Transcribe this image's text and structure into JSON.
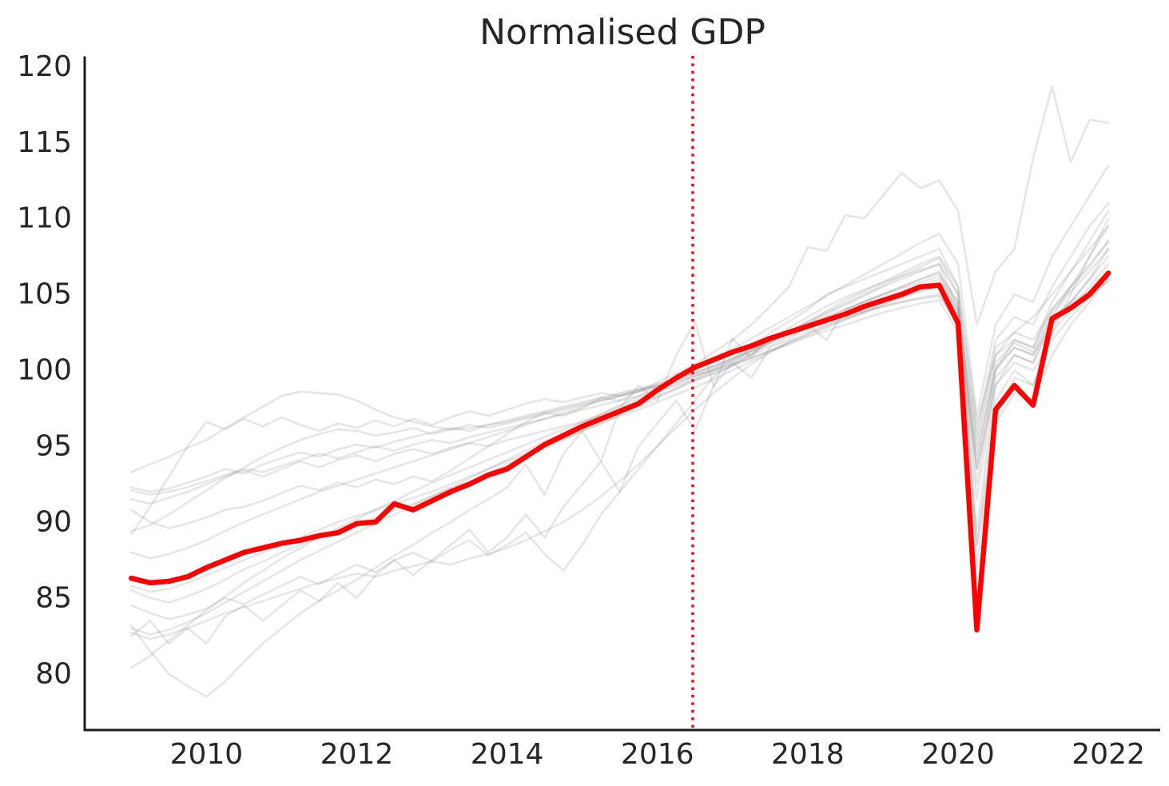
{
  "title": "Normalised GDP",
  "colors": {
    "highlight_line": "#ff0000",
    "reference_line": "#ff0000",
    "background_line": "#8c8c8c",
    "spine": "#1c1c1c",
    "text": "#262626",
    "background": "#ffffff"
  },
  "chart_data": {
    "type": "line",
    "title": "Normalised GDP",
    "xlabel": "",
    "ylabel": "",
    "grid": false,
    "legend": "none",
    "xlim": [
      2008.38,
      2022.69
    ],
    "ylim": [
      76.3,
      120.6
    ],
    "x_ticks": [
      2010,
      2012,
      2014,
      2016,
      2018,
      2020,
      2022
    ],
    "x_tick_labels": [
      "2010",
      "2012",
      "2014",
      "2016",
      "2018",
      "2020",
      "2022"
    ],
    "y_ticks": [
      80,
      85,
      90,
      95,
      100,
      105,
      110,
      115,
      120
    ],
    "y_tick_labels": [
      "80",
      "85",
      "90",
      "95",
      "100",
      "105",
      "110",
      "115",
      "120"
    ],
    "reference_line": {
      "orientation": "vertical",
      "style": "dotted",
      "x": 2016.47,
      "color": "#ff0000"
    },
    "x_start_year": 2009.0,
    "x_step_years": 0.25,
    "series": [
      {
        "name": "background-series-1",
        "role": "background",
        "values": [
          93.3,
          93.8,
          94.3,
          94.9,
          95.4,
          96.2,
          96.9,
          97.6,
          98.3,
          98.6,
          98.5,
          98.4,
          98.0,
          97.4,
          96.9,
          96.6,
          96.3,
          96.1,
          96.2,
          96.4,
          96.6,
          96.9,
          97.2,
          97.5,
          97.8,
          98.1,
          98.4,
          98.7,
          99.0,
          99.4,
          99.8,
          100.3,
          100.8,
          101.3,
          101.9,
          102.4,
          102.9,
          103.3,
          103.6,
          103.9,
          104.2,
          104.5,
          104.7,
          104.9,
          103.0,
          94.5,
          100.2,
          101.5,
          101.0,
          103.5,
          104.5,
          105.2,
          105.8
        ]
      },
      {
        "name": "background-series-2",
        "role": "background",
        "values": [
          90.8,
          90.0,
          89.6,
          89.9,
          90.3,
          90.8,
          91.0,
          91.4,
          91.9,
          92.4,
          92.1,
          92.6,
          92.3,
          92.8,
          92.5,
          93.0,
          92.7,
          93.4,
          94.2,
          95.0,
          95.8,
          96.6,
          97.2,
          97.0,
          97.5,
          98.2,
          98.0,
          98.6,
          99.2,
          99.8,
          100.4,
          101.2,
          102.0,
          103.0,
          104.2,
          105.5,
          108.1,
          107.9,
          110.2,
          110.0,
          111.5,
          113.0,
          112.0,
          112.5,
          110.5,
          103.0,
          106.5,
          108.0,
          114.0,
          118.7,
          113.7,
          116.5,
          116.3
        ]
      },
      {
        "name": "background-series-3",
        "role": "background",
        "values": [
          92.3,
          92.0,
          92.2,
          92.6,
          93.0,
          93.5,
          93.2,
          93.8,
          94.2,
          94.6,
          94.3,
          94.8,
          95.1,
          94.9,
          95.3,
          95.6,
          95.9,
          96.2,
          96.0,
          96.4,
          96.7,
          97.0,
          97.3,
          97.6,
          97.9,
          98.2,
          98.5,
          98.8,
          99.1,
          99.5,
          99.9,
          100.3,
          100.8,
          101.4,
          102.0,
          102.6,
          103.2,
          103.8,
          104.4,
          105.0,
          105.6,
          106.2,
          106.8,
          107.4,
          105.0,
          92.5,
          100.0,
          102.0,
          101.5,
          104.5,
          106.5,
          108.5,
          110.5
        ]
      },
      {
        "name": "background-series-4",
        "role": "background",
        "values": [
          92.1,
          91.8,
          92.0,
          92.3,
          92.7,
          93.1,
          93.5,
          93.3,
          93.7,
          94.1,
          94.5,
          94.2,
          94.6,
          95.0,
          94.7,
          95.1,
          95.4,
          95.2,
          95.6,
          95.9,
          96.2,
          96.5,
          96.8,
          97.1,
          97.4,
          97.7,
          98.0,
          98.3,
          98.6,
          99.0,
          99.4,
          99.8,
          100.3,
          100.8,
          101.3,
          101.8,
          102.3,
          102.8,
          103.3,
          103.8,
          104.3,
          104.8,
          105.3,
          105.8,
          104.0,
          95.5,
          101.5,
          102.5,
          102.0,
          104.0,
          105.5,
          107.0,
          108.5
        ]
      },
      {
        "name": "background-series-5",
        "role": "background",
        "values": [
          91.5,
          91.2,
          91.6,
          92.0,
          92.5,
          93.0,
          93.4,
          93.0,
          93.5,
          94.0,
          93.6,
          94.1,
          94.4,
          94.0,
          94.5,
          94.8,
          94.5,
          94.9,
          95.2,
          95.0,
          95.4,
          95.7,
          96.0,
          96.3,
          96.6,
          97.0,
          97.4,
          97.8,
          98.3,
          98.8,
          99.3,
          99.8,
          100.4,
          101.0,
          101.6,
          102.2,
          102.8,
          103.3,
          103.8,
          104.3,
          104.8,
          105.2,
          105.6,
          106.0,
          104.2,
          94.0,
          100.5,
          101.8,
          101.2,
          103.8,
          105.2,
          106.5,
          108.0
        ]
      },
      {
        "name": "background-series-6",
        "role": "background",
        "values": [
          89.4,
          89.8,
          90.5,
          91.3,
          92.1,
          92.9,
          93.6,
          94.3,
          94.9,
          95.4,
          95.8,
          96.1,
          96.0,
          95.7,
          95.9,
          96.2,
          95.8,
          96.1,
          96.4,
          96.2,
          96.5,
          96.8,
          97.1,
          97.4,
          97.7,
          98.0,
          98.3,
          98.6,
          98.9,
          99.2,
          99.6,
          100.0,
          100.5,
          101.1,
          101.8,
          102.5,
          103.2,
          103.9,
          104.6,
          105.2,
          105.8,
          106.4,
          107.0,
          107.5,
          105.5,
          96.0,
          102.0,
          103.5,
          103.0,
          105.5,
          107.5,
          109.5,
          111.0
        ]
      },
      {
        "name": "background-series-7",
        "role": "background",
        "values": [
          88.0,
          87.6,
          87.9,
          88.3,
          88.8,
          89.4,
          90.0,
          90.5,
          91.0,
          91.5,
          92.0,
          92.4,
          92.8,
          93.2,
          93.6,
          94.0,
          94.4,
          94.8,
          95.2,
          95.6,
          96.0,
          96.4,
          96.8,
          97.2,
          97.6,
          98.0,
          98.3,
          98.6,
          99.0,
          99.4,
          99.8,
          100.2,
          100.7,
          101.3,
          101.9,
          102.5,
          103.0,
          103.5,
          104.0,
          104.5,
          105.0,
          105.5,
          106.0,
          106.4,
          104.5,
          89.5,
          99.0,
          101.0,
          100.5,
          103.5,
          105.5,
          107.5,
          109.5
        ]
      },
      {
        "name": "background-series-8",
        "role": "background",
        "values": [
          85.8,
          85.4,
          85.6,
          86.0,
          86.5,
          87.0,
          87.5,
          88.0,
          88.5,
          89.0,
          89.5,
          90.0,
          90.4,
          90.8,
          91.2,
          91.6,
          92.0,
          92.5,
          93.0,
          93.5,
          94.0,
          94.5,
          95.0,
          95.5,
          96.0,
          96.5,
          97.0,
          97.4,
          97.9,
          98.4,
          98.9,
          99.4,
          100.0,
          100.6,
          101.2,
          101.8,
          102.4,
          102.9,
          103.4,
          103.9,
          104.4,
          104.8,
          105.2,
          105.6,
          103.8,
          93.5,
          100.0,
          101.5,
          101.0,
          103.0,
          104.5,
          106.0,
          107.5
        ]
      },
      {
        "name": "background-series-9",
        "role": "background",
        "values": [
          83.2,
          81.5,
          80.0,
          79.2,
          78.5,
          79.5,
          80.8,
          82.0,
          83.0,
          84.0,
          84.8,
          85.5,
          86.2,
          87.0,
          87.8,
          88.5,
          89.3,
          90.0,
          90.8,
          91.5,
          92.3,
          93.8,
          91.8,
          94.5,
          96.0,
          94.0,
          97.5,
          99.0,
          98.0,
          101.0,
          103.2,
          98.9,
          102.1,
          100.8,
          102.5,
          103.2,
          104.0,
          105.0,
          105.5,
          106.0,
          106.5,
          107.0,
          107.5,
          108.0,
          105.5,
          96.5,
          101.0,
          102.5,
          103.5,
          105.0,
          106.5,
          108.0,
          109.5
        ]
      },
      {
        "name": "background-series-10",
        "role": "background",
        "values": [
          83.0,
          82.6,
          82.9,
          83.4,
          84.0,
          84.7,
          85.4,
          86.1,
          86.8,
          87.5,
          88.1,
          88.7,
          89.3,
          89.9,
          90.5,
          91.1,
          91.7,
          92.3,
          92.9,
          93.5,
          94.1,
          94.7,
          95.3,
          95.9,
          96.5,
          97.1,
          97.7,
          98.3,
          98.9,
          99.5,
          100.1,
          100.7,
          101.4,
          102.1,
          102.8,
          103.5,
          104.2,
          104.9,
          105.6,
          106.3,
          107.0,
          107.7,
          108.4,
          109.0,
          107.0,
          97.0,
          103.0,
          105.0,
          104.5,
          107.5,
          109.5,
          111.5,
          113.5
        ]
      },
      {
        "name": "background-series-11",
        "role": "background",
        "values": [
          82.7,
          82.3,
          82.6,
          83.0,
          83.5,
          84.0,
          84.4,
          84.8,
          85.2,
          85.6,
          86.0,
          86.3,
          86.6,
          86.4,
          86.8,
          87.1,
          87.4,
          87.2,
          87.6,
          87.9,
          88.3,
          88.8,
          89.4,
          90.0,
          90.8,
          91.7,
          92.7,
          93.8,
          95.0,
          96.2,
          97.4,
          98.5,
          99.5,
          100.4,
          101.2,
          101.9,
          102.5,
          103.0,
          103.4,
          103.8,
          104.2,
          104.5,
          104.8,
          105.0,
          103.0,
          88.5,
          96.5,
          98.5,
          98.0,
          101.0,
          103.0,
          104.5,
          106.0
        ]
      },
      {
        "name": "background-series-12",
        "role": "background",
        "values": [
          80.4,
          81.2,
          82.2,
          83.2,
          84.2,
          85.1,
          86.0,
          86.8,
          87.6,
          88.3,
          89.0,
          89.6,
          90.2,
          90.8,
          91.4,
          92.0,
          92.6,
          93.1,
          93.6,
          94.1,
          94.6,
          95.1,
          95.6,
          96.1,
          96.6,
          97.1,
          97.6,
          98.1,
          98.6,
          99.1,
          99.6,
          100.1,
          100.7,
          101.3,
          101.9,
          102.5,
          103.1,
          103.7,
          104.3,
          104.9,
          105.5,
          106.0,
          106.5,
          107.0,
          105.0,
          87.0,
          97.0,
          99.5,
          99.0,
          102.5,
          105.0,
          107.5,
          110.0
        ]
      },
      {
        "name": "background-series-13",
        "role": "background",
        "values": [
          84.5,
          84.0,
          83.6,
          83.9,
          84.3,
          85.0,
          84.6,
          85.2,
          85.8,
          86.4,
          85.9,
          86.6,
          87.2,
          86.7,
          87.5,
          88.0,
          87.4,
          88.2,
          88.8,
          87.8,
          88.5,
          89.3,
          87.9,
          86.8,
          88.5,
          90.5,
          92.0,
          93.5,
          95.0,
          96.5,
          98.0,
          99.6,
          100.3,
          101.0,
          102.0,
          102.8,
          103.5,
          104.2,
          104.8,
          105.3,
          105.8,
          106.2,
          106.6,
          107.0,
          104.0,
          88.5,
          98.0,
          100.0,
          99.0,
          102.5,
          104.0,
          105.5,
          107.0
        ]
      },
      {
        "name": "background-series-14",
        "role": "background",
        "values": [
          82.5,
          83.5,
          82.0,
          83.0,
          82.0,
          83.8,
          84.5,
          83.5,
          84.5,
          85.5,
          84.8,
          86.0,
          85.0,
          86.5,
          87.5,
          86.5,
          87.5,
          88.5,
          89.5,
          88.0,
          89.0,
          90.5,
          89.0,
          91.0,
          92.5,
          94.0,
          92.0,
          95.0,
          96.5,
          98.0,
          96.0,
          99.0,
          100.5,
          99.5,
          101.5,
          102.0,
          103.0,
          102.0,
          104.0,
          104.5,
          105.0,
          105.5,
          106.0,
          106.5,
          103.5,
          91.5,
          99.5,
          101.0,
          100.5,
          103.0,
          104.5,
          106.0,
          108.0
        ]
      },
      {
        "name": "background-series-15",
        "role": "background",
        "values": [
          85.5,
          85.0,
          84.7,
          85.1,
          85.6,
          86.2,
          86.9,
          87.4,
          88.0,
          88.5,
          89.0,
          89.4,
          89.9,
          90.3,
          90.8,
          91.2,
          91.7,
          92.2,
          92.7,
          93.2,
          93.8,
          94.3,
          94.9,
          95.4,
          96.0,
          96.5,
          97.1,
          97.6,
          98.2,
          98.8,
          99.4,
          100.0,
          100.6,
          101.2,
          101.8,
          102.4,
          103.0,
          103.5,
          104.0,
          104.5,
          105.0,
          105.4,
          105.8,
          106.2,
          104.5,
          95.0,
          101.0,
          102.0,
          101.5,
          104.0,
          105.5,
          106.8,
          108.5
        ]
      },
      {
        "name": "background-series-16",
        "role": "background",
        "values": [
          89.2,
          91.0,
          93.0,
          95.0,
          96.6,
          96.1,
          96.8,
          96.3,
          96.9,
          96.4,
          96.0,
          96.5,
          96.2,
          96.7,
          96.3,
          96.8,
          96.4,
          96.9,
          97.3,
          97.0,
          97.4,
          97.8,
          98.1,
          97.9,
          98.2,
          98.5,
          98.3,
          98.7,
          99.0,
          99.3,
          99.7,
          100.0,
          100.4,
          100.8,
          101.3,
          101.7,
          102.2,
          102.6,
          103.0,
          103.4,
          103.8,
          104.1,
          104.4,
          104.6,
          102.5,
          93.5,
          99.0,
          100.5,
          100.0,
          102.0,
          103.5,
          104.8,
          106.0
        ]
      },
      {
        "name": "highlighted-series",
        "role": "highlight",
        "values": [
          86.3,
          86.0,
          86.1,
          86.4,
          87.0,
          87.5,
          88.0,
          88.3,
          88.6,
          88.8,
          89.1,
          89.3,
          89.9,
          90.0,
          91.2,
          90.8,
          91.4,
          92.0,
          92.5,
          93.1,
          93.5,
          94.3,
          95.1,
          95.7,
          96.3,
          96.8,
          97.3,
          97.8,
          98.7,
          99.5,
          100.2,
          100.7,
          101.2,
          101.6,
          102.1,
          102.5,
          102.9,
          103.3,
          103.7,
          104.2,
          104.6,
          105.0,
          105.5,
          105.6,
          103.1,
          82.9,
          97.4,
          99.0,
          97.7,
          103.4,
          104.1,
          105.0,
          106.4
        ]
      }
    ]
  }
}
